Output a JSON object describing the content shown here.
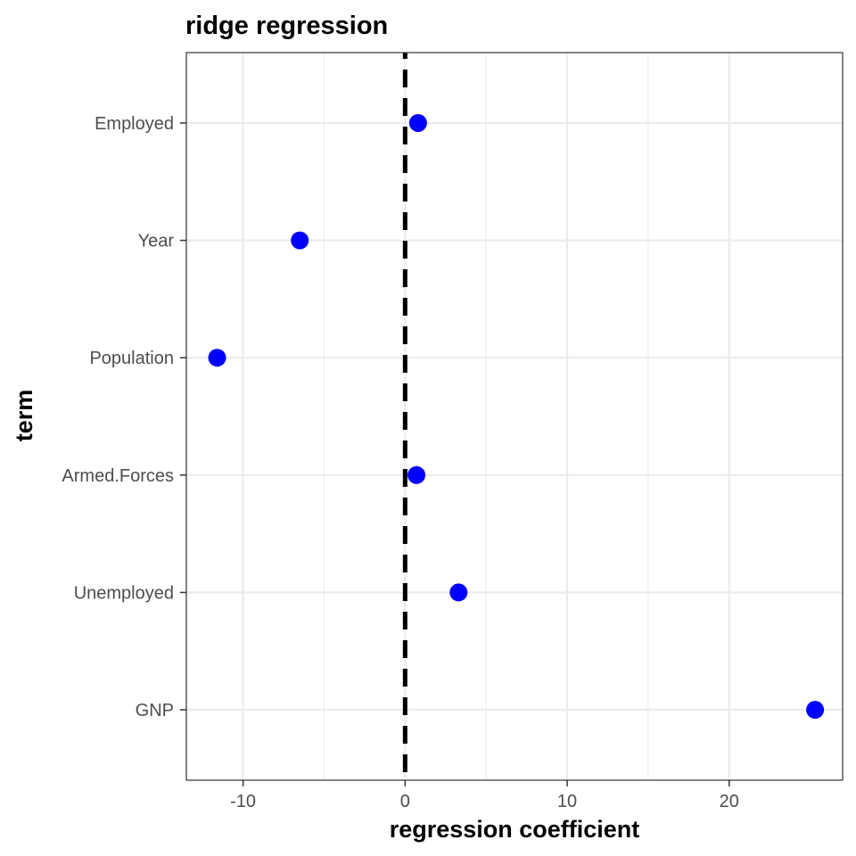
{
  "chart_data": {
    "type": "scatter",
    "title": "ridge regression",
    "xlabel": "regression coefficient",
    "ylabel": "term",
    "xlim": [
      -13.5,
      27
    ],
    "x_ticks": [
      -10,
      0,
      10,
      20
    ],
    "x_tick_labels": [
      "-10",
      "0",
      "10",
      "20"
    ],
    "categories": [
      "GNP",
      "Unemployed",
      "Armed.Forces",
      "Population",
      "Year",
      "Employed"
    ],
    "series": [
      {
        "points": [
          {
            "term": "GNP",
            "x": 25.3
          },
          {
            "term": "Unemployed",
            "x": 3.3
          },
          {
            "term": "Armed.Forces",
            "x": 0.7
          },
          {
            "term": "Population",
            "x": -11.6
          },
          {
            "term": "Year",
            "x": -6.5
          },
          {
            "term": "Employed",
            "x": 0.8
          }
        ]
      }
    ],
    "reference_line": {
      "x": 0,
      "style": "dashed",
      "color": "#000000"
    },
    "point_color": "#0000ff",
    "grid": true,
    "legend": "none"
  }
}
